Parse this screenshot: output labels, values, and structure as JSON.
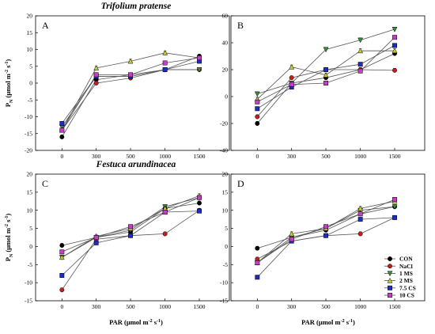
{
  "titles": {
    "top": "Trifolium pratense",
    "bottom": "Festuca arundinacea"
  },
  "ylabel": {
    "main": "P",
    "sub": "N",
    "unit_pre": " (μmol m",
    "unit_exp1": "-2",
    "unit_mid": " s",
    "unit_exp2": "-1",
    "unit_post": ")"
  },
  "xlabel": {
    "main": "PAR (μmol m",
    "exp1": "-2",
    "mid": " s",
    "exp2": "-1",
    "post": ")"
  },
  "legend": [
    "CON",
    "NaCl",
    "1 MS",
    "2 MS",
    "7.5 CS",
    "10 CS"
  ],
  "colors": {
    "CON": "#000000",
    "NaCl": "#c81c1c",
    "1 MS": "#3a8f3a",
    "2 MS": "#c8c832",
    "7.5 CS": "#1c2cc8",
    "10 CS": "#c83cc8"
  },
  "chart_data": [
    {
      "panel": "A",
      "type": "line",
      "x_categories": [
        "0",
        "300",
        "500",
        "1000",
        "1500"
      ],
      "ylim": [
        -20,
        20
      ],
      "yticks": [
        -20,
        -15,
        -10,
        -5,
        0,
        5,
        10,
        15,
        20
      ],
      "series": [
        {
          "name": "CON",
          "values": [
            -16,
            1,
            2.5,
            4,
            8
          ]
        },
        {
          "name": "NaCl",
          "values": [
            -14,
            0,
            1.5,
            4,
            4
          ]
        },
        {
          "name": "1 MS",
          "values": [
            -13,
            2,
            2,
            4,
            4
          ]
        },
        {
          "name": "2 MS",
          "values": [
            -14,
            4.5,
            6.5,
            9,
            7.5
          ]
        },
        {
          "name": "7.5 CS",
          "values": [
            -12,
            2,
            2,
            4,
            6.5
          ]
        },
        {
          "name": "10 CS",
          "values": [
            -14,
            2.5,
            2.5,
            6,
            7.5
          ]
        }
      ]
    },
    {
      "panel": "B",
      "type": "line",
      "x_categories": [
        "0",
        "300",
        "500",
        "1000",
        "1500"
      ],
      "ylim": [
        -40,
        60
      ],
      "yticks": [
        -40,
        -20,
        0,
        20,
        40,
        60
      ],
      "series": [
        {
          "name": "CON",
          "values": [
            -20,
            10,
            14,
            20,
            32
          ]
        },
        {
          "name": "NaCl",
          "values": [
            -15,
            14,
            20,
            20,
            19.5
          ]
        },
        {
          "name": "1 MS",
          "values": [
            2,
            10,
            35,
            42,
            50
          ]
        },
        {
          "name": "2 MS",
          "values": [
            -2,
            22,
            16,
            34,
            34
          ]
        },
        {
          "name": "7.5 CS",
          "values": [
            -9,
            7,
            20,
            24,
            38
          ]
        },
        {
          "name": "10 CS",
          "values": [
            -4,
            9,
            10,
            19,
            44
          ]
        }
      ]
    },
    {
      "panel": "C",
      "type": "line",
      "x_categories": [
        "0",
        "300",
        "500",
        "1000",
        "1500"
      ],
      "ylim": [
        -15,
        20
      ],
      "yticks": [
        -15,
        -10,
        -5,
        0,
        5,
        10,
        15,
        20
      ],
      "series": [
        {
          "name": "CON",
          "values": [
            0.3,
            2.5,
            4,
            10.5,
            12
          ]
        },
        {
          "name": "NaCl",
          "values": [
            -12,
            2,
            3,
            3.5,
            10
          ]
        },
        {
          "name": "1 MS",
          "values": [
            -3,
            2.5,
            4.5,
            11,
            13.5
          ]
        },
        {
          "name": "2 MS",
          "values": [
            -3,
            2.8,
            5,
            10.5,
            14
          ]
        },
        {
          "name": "7.5 CS",
          "values": [
            -8,
            1,
            3,
            9.5,
            9.8
          ]
        },
        {
          "name": "10 CS",
          "values": [
            -1.5,
            2.5,
            5.5,
            9.5,
            13.5
          ]
        }
      ]
    },
    {
      "panel": "D",
      "type": "line",
      "x_categories": [
        "0",
        "300",
        "500",
        "1000",
        "1500"
      ],
      "ylim": [
        -15,
        20
      ],
      "yticks": [
        -15,
        -10,
        -5,
        0,
        5,
        10,
        15,
        20
      ],
      "series": [
        {
          "name": "CON",
          "values": [
            -0.5,
            2.5,
            4.5,
            9,
            11
          ]
        },
        {
          "name": "NaCl",
          "values": [
            -3.5,
            1.5,
            3,
            3.5,
            8
          ]
        },
        {
          "name": "1 MS",
          "values": [
            -4.5,
            2.5,
            5,
            10,
            11
          ]
        },
        {
          "name": "2 MS",
          "values": [
            -4.5,
            3.5,
            5,
            10.5,
            12.5
          ]
        },
        {
          "name": "7.5 CS",
          "values": [
            -8.5,
            1.5,
            3,
            7.5,
            8
          ]
        },
        {
          "name": "10 CS",
          "values": [
            -4.5,
            2,
            5.5,
            9,
            13
          ]
        }
      ]
    }
  ]
}
